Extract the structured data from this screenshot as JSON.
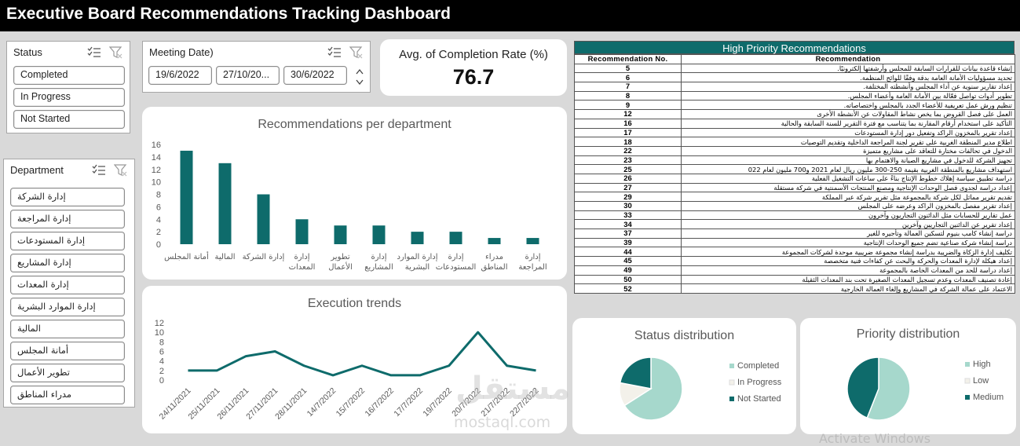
{
  "title": "Executive Board Recommendations Tracking Dashboard",
  "status_slicer": {
    "header": "Status",
    "items": [
      "Completed",
      "In Progress",
      "Not Started"
    ]
  },
  "date_slicer": {
    "header": "Meeting Date)",
    "items": [
      "19/6/2022",
      "27/10/20...",
      "30/6/2022"
    ]
  },
  "department_slicer": {
    "header": "Department",
    "items": [
      "إدارة الشركة",
      "إدارة المراجعة",
      "إدارة المستودعات",
      "إدارة المشاريع",
      "إدارة المعدات",
      "إدارة الموارد البشرية",
      "المالية",
      "أمانة المجلس",
      "تطوير الأعمال",
      "مدراء المناطق"
    ]
  },
  "kpi": {
    "label": "Avg. of Completion Rate (%)",
    "value": "76.7"
  },
  "bar_panel_title": "Recommendations per department",
  "line_panel_title": "Execution trends",
  "status_panel_title": "Status distribution",
  "priority_panel_title": "Priority distribution",
  "chart_data": [
    {
      "type": "bar",
      "title": "Recommendations per department",
      "categories": [
        [
          "أمانة المجلس"
        ],
        [
          "المالية"
        ],
        [
          "إدارة الشركة"
        ],
        [
          "إدارة",
          "المعدات"
        ],
        [
          "تطوير",
          "الأعمال"
        ],
        [
          "إدارة",
          "المشاريع"
        ],
        [
          "إدارة الموارد",
          "البشرية"
        ],
        [
          "إدارة",
          "المستودعات"
        ],
        [
          "مدراء",
          "المناطق"
        ],
        [
          "إدارة",
          "المراجعة"
        ]
      ],
      "values": [
        15,
        13,
        8,
        4,
        3,
        3,
        2,
        2,
        1,
        1
      ],
      "ylim": [
        0,
        16
      ],
      "yticks": [
        0,
        2,
        4,
        6,
        8,
        10,
        12,
        14,
        16
      ],
      "color": "#0e6b6b"
    },
    {
      "type": "line",
      "title": "Execution trends",
      "x": [
        "24/11/2021",
        "25/11/2021",
        "26/11/2021",
        "27/11/2021",
        "28/11/2021",
        "14/7/2022",
        "15/7/2022",
        "16/7/2022",
        "17/7/2022",
        "19/7/2022",
        "20/7/2022",
        "21/7/2022",
        "22/7/2022"
      ],
      "values": [
        2,
        2,
        5,
        6,
        3,
        1,
        3,
        1,
        1,
        3,
        10,
        3,
        2
      ],
      "ylim": [
        0,
        12
      ],
      "yticks": [
        0,
        2,
        4,
        6,
        8,
        10,
        12
      ],
      "color": "#0e6b6b"
    },
    {
      "type": "pie",
      "title": "Status distribution",
      "labels": [
        "Completed",
        "In Progress",
        "Not Started"
      ],
      "values": [
        66,
        12,
        22
      ],
      "colors": [
        "#a6d8cc",
        "#f3f1ea",
        "#0e6b6b"
      ]
    },
    {
      "type": "pie",
      "title": "Priority distribution",
      "labels": [
        "High",
        "Low",
        "Medium"
      ],
      "values": [
        56,
        0,
        44
      ],
      "colors": [
        "#a6d8cc",
        "#f3f1ea",
        "#0e6b6b"
      ]
    }
  ],
  "priority_table": {
    "title": "High Priority Recommendations",
    "col_num": "Recommendation No.",
    "col_rec": "Recommendation",
    "rows": [
      {
        "num": "5",
        "text": "إنشاء قاعدة بيانات للقرارات السابقة للمجلس وأرشفتها إلكترونيًا."
      },
      {
        "num": "6",
        "text": "تحديد مسؤوليات الأمانة العامة بدقة وفقًا للوائح المنظمة."
      },
      {
        "num": "7",
        "text": "إعداد تقارير سنوية عن أداء المجلس وأنشطته المختلفة."
      },
      {
        "num": "8",
        "text": "تطوير أدوات تواصل فعّالة بين الأمانة العامة وأعضاء المجلس."
      },
      {
        "num": "9",
        "text": "تنظيم ورش عمل تعريفية للأعضاء الجدد بالمجلس واختصاصاته."
      },
      {
        "num": "12",
        "text": "العمل على فصل القروض بما يخص نشاط المقاولات عن الأنشطة الأخرى"
      },
      {
        "num": "16",
        "text": "التأكيد على استخدام أرقام المقارنة بما يتناسب مع فترة التقرير للسنة السابقة والحالية"
      },
      {
        "num": "17",
        "text": "إعداد تقرير بالمخزون الراكد وتفعيل دور إدارة المستودعات"
      },
      {
        "num": "18",
        "text": "اطلاع مدير المنطقة الغربية على تقرير لجنة المراجعة الداخلية وتقديم التوصيات"
      },
      {
        "num": "22",
        "text": "الدخول في تحالفات مختارة للتعاقد على مشاريع متميزة"
      },
      {
        "num": "23",
        "text": "تجهيز الشركة للدخول في مشاريع الصيانة والاهتمام بها"
      },
      {
        "num": "25",
        "text": "استهداف مشاريع بالمنطقة الغربية بقيمة 250-300 مليون ريال لعام 2021 و700 مليون لعام 022"
      },
      {
        "num": "26",
        "text": "دراسة تطبيق سياسة إهلاك خطوط الإنتاج بناءً على ساعات التشغيل الفعلية"
      },
      {
        "num": "27",
        "text": "إعداد دراسة لجدوى فصل الوحدات الإنتاجية ومصنع المنتجات الأسمنتية في شركة مستقلة"
      },
      {
        "num": "29",
        "text": "تقديم تقرير مماثل لكل شركة بالمجموعة مثل تقرير شركة عبر المملكة"
      },
      {
        "num": "30",
        "text": "إعداد تقرير مفصل بالمخزون الراكد وعرضه على المجلس"
      },
      {
        "num": "33",
        "text": "عمل تقارير للحسابات مثل الدائنون التجاريون وآخرون"
      },
      {
        "num": "34",
        "text": "إعداد تقرير عن الدائنين التجاريين وآخرين"
      },
      {
        "num": "37",
        "text": "دراسة إنشاء كامب بنيوم لتسكين العمالة وتأجيره للغير"
      },
      {
        "num": "39",
        "text": "دراسة إنشاء شركة صناعية تضم جميع الوحدات الإنتاجية"
      },
      {
        "num": "44",
        "text": "تكليف إدارة الزكاة والضريبة بدراسة إنشاء مجموعة ضريبية موحدة لشركات المجموعة"
      },
      {
        "num": "45",
        "text": "إعداد هيكلة لإدارة المعدات والحركة والبحث عن كفاءات فنية متخصصة"
      },
      {
        "num": "49",
        "text": "إعداد دراسة للحد من المعدات الخاصة بالمجموعة"
      },
      {
        "num": "50",
        "text": "إعادة تصنيف المعدات وعدم تسجيل المعدات الصغيرة تحت بند المعدات الثقيلة"
      },
      {
        "num": "52",
        "text": "الاعتماد على عمالة الشركة في المشاريع وإلغاء العمالة الخارجية"
      }
    ]
  },
  "watermark": {
    "arabic": "مستقل",
    "latin": "mostaql.com",
    "windows": "Activate Windows"
  }
}
